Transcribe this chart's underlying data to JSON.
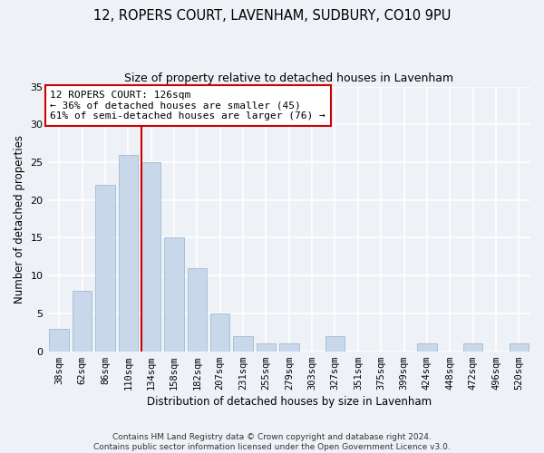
{
  "title": "12, ROPERS COURT, LAVENHAM, SUDBURY, CO10 9PU",
  "subtitle": "Size of property relative to detached houses in Lavenham",
  "xlabel": "Distribution of detached houses by size in Lavenham",
  "ylabel": "Number of detached properties",
  "bar_color": "#c8d8ea",
  "bar_edge_color": "#a8c0d8",
  "categories": [
    "38sqm",
    "62sqm",
    "86sqm",
    "110sqm",
    "134sqm",
    "158sqm",
    "182sqm",
    "207sqm",
    "231sqm",
    "255sqm",
    "279sqm",
    "303sqm",
    "327sqm",
    "351sqm",
    "375sqm",
    "399sqm",
    "424sqm",
    "448sqm",
    "472sqm",
    "496sqm",
    "520sqm"
  ],
  "values": [
    3,
    8,
    22,
    26,
    25,
    15,
    11,
    5,
    2,
    1,
    1,
    0,
    2,
    0,
    0,
    0,
    1,
    0,
    1,
    0,
    1
  ],
  "ylim": [
    0,
    35
  ],
  "yticks": [
    0,
    5,
    10,
    15,
    20,
    25,
    30,
    35
  ],
  "marker_bar_index": 4,
  "marker_color": "#cc0000",
  "annotation_text": "12 ROPERS COURT: 126sqm\n← 36% of detached houses are smaller (45)\n61% of semi-detached houses are larger (76) →",
  "annotation_box_color": "#ffffff",
  "annotation_box_edge": "#cc0000",
  "footer_line1": "Contains HM Land Registry data © Crown copyright and database right 2024.",
  "footer_line2": "Contains public sector information licensed under the Open Government Licence v3.0.",
  "background_color": "#eef2f7",
  "grid_color": "#ffffff",
  "title_fontsize": 10.5,
  "subtitle_fontsize": 9,
  "ylabel_fontsize": 8.5,
  "xlabel_fontsize": 8.5,
  "tick_fontsize": 7.5,
  "annotation_fontsize": 8,
  "footer_fontsize": 6.5
}
